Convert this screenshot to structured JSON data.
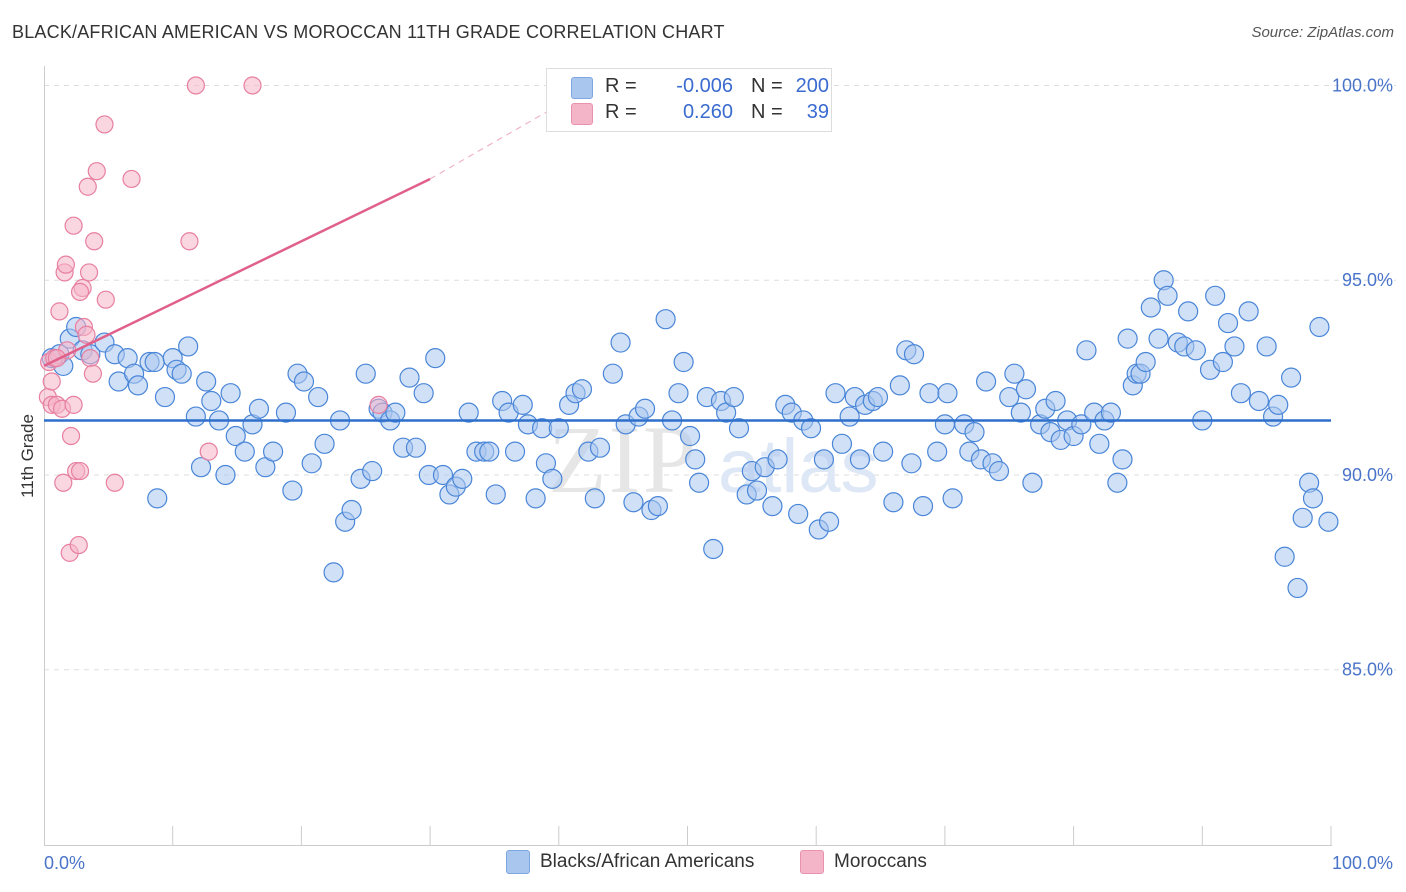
{
  "title": "BLACK/AFRICAN AMERICAN VS MOROCCAN 11TH GRADE CORRELATION CHART",
  "source": "Source: ZipAtlas.com",
  "watermark": "ZIPatlas",
  "legend": {
    "rows": [
      {
        "r_label": "R =",
        "r_value": "-0.006",
        "n_label": "N =",
        "n_value": "200",
        "color": "#a9c6ef"
      },
      {
        "r_label": "R =",
        "r_value": "0.260",
        "n_label": "N =",
        "n_value": "39",
        "color": "#f5b5c8"
      }
    ]
  },
  "bottom_legend": [
    {
      "label": "Blacks/African Americans",
      "color": "#a9c6ef"
    },
    {
      "label": "Moroccans",
      "color": "#f5b5c8"
    }
  ],
  "chart_data": {
    "type": "scatter",
    "title": "BLACK/AFRICAN AMERICAN VS MOROCCAN 11TH GRADE CORRELATION CHART",
    "xlabel": "",
    "ylabel": "11th Grade",
    "xlim": [
      0,
      100
    ],
    "ylim": [
      80.5,
      100.5
    ],
    "x_tick_labels": [
      "0.0%",
      "100.0%"
    ],
    "y_ticks": [
      85,
      90,
      95,
      100
    ],
    "y_tick_labels": [
      "85.0%",
      "90.0%",
      "95.0%",
      "100.0%"
    ],
    "grid": true,
    "series": [
      {
        "name": "Blacks/African Americans",
        "color": "#4a86d8",
        "fill": "#a9c6ef",
        "trend": {
          "x": [
            0,
            100
          ],
          "y": [
            91.4,
            91.4
          ],
          "color": "#2e6fcc"
        },
        "points": [
          [
            0.6,
            93.0
          ],
          [
            1.2,
            93.1
          ],
          [
            1.5,
            92.8
          ],
          [
            2.0,
            93.5
          ],
          [
            2.5,
            93.8
          ],
          [
            3.0,
            93.2
          ],
          [
            3.6,
            93.1
          ],
          [
            4.7,
            93.4
          ],
          [
            5.5,
            93.1
          ],
          [
            5.8,
            92.4
          ],
          [
            6.5,
            93.0
          ],
          [
            7.0,
            92.6
          ],
          [
            7.3,
            92.3
          ],
          [
            8.2,
            92.9
          ],
          [
            8.6,
            92.9
          ],
          [
            8.8,
            89.4
          ],
          [
            9.4,
            92.0
          ],
          [
            10.0,
            93.0
          ],
          [
            10.3,
            92.7
          ],
          [
            10.7,
            92.6
          ],
          [
            11.2,
            93.3
          ],
          [
            11.8,
            91.5
          ],
          [
            12.2,
            90.2
          ],
          [
            12.6,
            92.4
          ],
          [
            13.0,
            91.9
          ],
          [
            13.6,
            91.4
          ],
          [
            14.1,
            90.0
          ],
          [
            14.5,
            92.1
          ],
          [
            14.9,
            91.0
          ],
          [
            15.6,
            90.6
          ],
          [
            16.2,
            91.3
          ],
          [
            16.7,
            91.7
          ],
          [
            17.2,
            90.2
          ],
          [
            17.8,
            90.6
          ],
          [
            18.8,
            91.6
          ],
          [
            19.3,
            89.6
          ],
          [
            19.7,
            92.6
          ],
          [
            20.2,
            92.4
          ],
          [
            20.8,
            90.3
          ],
          [
            21.3,
            92.0
          ],
          [
            21.8,
            90.8
          ],
          [
            22.5,
            87.5
          ],
          [
            23.0,
            91.4
          ],
          [
            23.4,
            88.8
          ],
          [
            23.9,
            89.1
          ],
          [
            24.6,
            89.9
          ],
          [
            25.0,
            92.6
          ],
          [
            25.5,
            90.1
          ],
          [
            26.0,
            91.7
          ],
          [
            26.3,
            91.6
          ],
          [
            26.9,
            91.4
          ],
          [
            27.3,
            91.6
          ],
          [
            27.9,
            90.7
          ],
          [
            28.4,
            92.5
          ],
          [
            28.9,
            90.7
          ],
          [
            29.5,
            92.1
          ],
          [
            29.9,
            90.0
          ],
          [
            30.4,
            93.0
          ],
          [
            31.0,
            90.0
          ],
          [
            31.5,
            89.5
          ],
          [
            32.0,
            89.7
          ],
          [
            32.5,
            89.9
          ],
          [
            33.0,
            91.6
          ],
          [
            33.6,
            90.6
          ],
          [
            34.2,
            90.6
          ],
          [
            34.6,
            90.6
          ],
          [
            35.1,
            89.5
          ],
          [
            35.6,
            91.9
          ],
          [
            36.1,
            91.6
          ],
          [
            36.6,
            90.6
          ],
          [
            37.2,
            91.8
          ],
          [
            37.6,
            91.3
          ],
          [
            38.2,
            89.4
          ],
          [
            38.7,
            91.2
          ],
          [
            39.0,
            90.3
          ],
          [
            39.5,
            89.9
          ],
          [
            40.0,
            91.2
          ],
          [
            40.8,
            91.8
          ],
          [
            41.3,
            92.1
          ],
          [
            41.8,
            92.2
          ],
          [
            42.3,
            90.6
          ],
          [
            42.8,
            89.4
          ],
          [
            43.2,
            90.7
          ],
          [
            44.2,
            92.6
          ],
          [
            44.8,
            93.4
          ],
          [
            45.2,
            91.3
          ],
          [
            45.8,
            89.3
          ],
          [
            46.2,
            91.5
          ],
          [
            46.7,
            91.7
          ],
          [
            47.2,
            89.1
          ],
          [
            47.7,
            89.2
          ],
          [
            48.3,
            94.0
          ],
          [
            48.8,
            91.4
          ],
          [
            49.3,
            92.1
          ],
          [
            49.7,
            92.9
          ],
          [
            50.2,
            91.0
          ],
          [
            50.6,
            90.4
          ],
          [
            50.9,
            89.8
          ],
          [
            51.5,
            92.0
          ],
          [
            52.0,
            88.1
          ],
          [
            52.6,
            91.9
          ],
          [
            53.0,
            91.6
          ],
          [
            53.6,
            92.0
          ],
          [
            54.0,
            91.2
          ],
          [
            54.6,
            89.5
          ],
          [
            55.0,
            90.1
          ],
          [
            55.4,
            89.6
          ],
          [
            56.0,
            90.2
          ],
          [
            56.6,
            89.2
          ],
          [
            57.0,
            90.4
          ],
          [
            57.6,
            91.8
          ],
          [
            58.1,
            91.6
          ],
          [
            58.6,
            89.0
          ],
          [
            59.0,
            91.4
          ],
          [
            59.6,
            91.2
          ],
          [
            60.2,
            88.6
          ],
          [
            60.6,
            90.4
          ],
          [
            61.0,
            88.8
          ],
          [
            61.5,
            92.1
          ],
          [
            62.0,
            90.8
          ],
          [
            62.6,
            91.5
          ],
          [
            63.0,
            92.0
          ],
          [
            63.4,
            90.4
          ],
          [
            63.8,
            91.8
          ],
          [
            64.4,
            91.9
          ],
          [
            64.8,
            92.0
          ],
          [
            65.2,
            90.6
          ],
          [
            66.0,
            89.3
          ],
          [
            66.5,
            92.3
          ],
          [
            67.0,
            93.2
          ],
          [
            67.4,
            90.3
          ],
          [
            67.6,
            93.1
          ],
          [
            68.3,
            89.2
          ],
          [
            68.8,
            92.1
          ],
          [
            69.4,
            90.6
          ],
          [
            70.0,
            91.3
          ],
          [
            70.2,
            92.1
          ],
          [
            70.6,
            89.4
          ],
          [
            71.5,
            91.3
          ],
          [
            71.9,
            90.6
          ],
          [
            72.3,
            91.1
          ],
          [
            72.8,
            90.4
          ],
          [
            73.2,
            92.4
          ],
          [
            73.7,
            90.3
          ],
          [
            74.2,
            90.1
          ],
          [
            75.0,
            92.0
          ],
          [
            75.4,
            92.6
          ],
          [
            75.9,
            91.6
          ],
          [
            76.3,
            92.2
          ],
          [
            76.8,
            89.8
          ],
          [
            77.4,
            91.3
          ],
          [
            77.8,
            91.7
          ],
          [
            78.2,
            91.1
          ],
          [
            78.6,
            91.9
          ],
          [
            79.0,
            90.9
          ],
          [
            79.5,
            91.4
          ],
          [
            80.0,
            91.0
          ],
          [
            80.6,
            91.3
          ],
          [
            81.0,
            93.2
          ],
          [
            81.6,
            91.6
          ],
          [
            82.0,
            90.8
          ],
          [
            82.4,
            91.4
          ],
          [
            82.9,
            91.6
          ],
          [
            83.4,
            89.8
          ],
          [
            83.8,
            90.4
          ],
          [
            84.2,
            93.5
          ],
          [
            84.6,
            92.3
          ],
          [
            84.9,
            92.6
          ],
          [
            85.2,
            92.6
          ],
          [
            85.6,
            92.9
          ],
          [
            86.0,
            94.3
          ],
          [
            86.6,
            93.5
          ],
          [
            87.0,
            95.0
          ],
          [
            87.3,
            94.6
          ],
          [
            88.1,
            93.4
          ],
          [
            88.6,
            93.3
          ],
          [
            88.9,
            94.2
          ],
          [
            89.5,
            93.2
          ],
          [
            90.0,
            91.4
          ],
          [
            90.6,
            92.7
          ],
          [
            91.0,
            94.6
          ],
          [
            91.6,
            92.9
          ],
          [
            92.0,
            93.9
          ],
          [
            92.5,
            93.3
          ],
          [
            93.0,
            92.1
          ],
          [
            93.6,
            94.2
          ],
          [
            94.4,
            91.9
          ],
          [
            95.0,
            93.3
          ],
          [
            95.5,
            91.5
          ],
          [
            95.9,
            91.8
          ],
          [
            96.4,
            87.9
          ],
          [
            96.9,
            92.5
          ],
          [
            97.4,
            87.1
          ],
          [
            97.8,
            88.9
          ],
          [
            98.3,
            89.8
          ],
          [
            98.6,
            89.4
          ],
          [
            99.1,
            93.8
          ],
          [
            99.8,
            88.8
          ]
        ]
      },
      {
        "name": "Moroccans",
        "color": "#e77fa0",
        "fill": "#f5b5c8",
        "trend": {
          "x": [
            0,
            30.0
          ],
          "y": [
            92.8,
            97.6
          ],
          "dashed_x": [
            30.0,
            40.0
          ],
          "dashed_y": [
            97.6,
            99.5
          ],
          "color": "#e0608a"
        },
        "points": [
          [
            0.3,
            92.0
          ],
          [
            0.4,
            92.9
          ],
          [
            0.6,
            92.4
          ],
          [
            0.6,
            91.8
          ],
          [
            0.8,
            93.0
          ],
          [
            1.0,
            91.8
          ],
          [
            1.2,
            94.2
          ],
          [
            1.4,
            91.7
          ],
          [
            1.5,
            89.8
          ],
          [
            1.6,
            95.2
          ],
          [
            1.7,
            95.4
          ],
          [
            1.8,
            93.2
          ],
          [
            2.0,
            88.0
          ],
          [
            2.1,
            91.0
          ],
          [
            2.3,
            96.4
          ],
          [
            2.3,
            91.8
          ],
          [
            2.5,
            90.1
          ],
          [
            2.7,
            88.2
          ],
          [
            2.8,
            90.1
          ],
          [
            3.0,
            94.8
          ],
          [
            3.1,
            93.8
          ],
          [
            3.3,
            93.6
          ],
          [
            3.4,
            97.4
          ],
          [
            3.5,
            95.2
          ],
          [
            3.6,
            93.0
          ],
          [
            3.8,
            92.6
          ],
          [
            3.9,
            96.0
          ],
          [
            4.1,
            97.8
          ],
          [
            4.7,
            99.0
          ],
          [
            4.8,
            94.5
          ],
          [
            5.5,
            89.8
          ],
          [
            6.8,
            97.6
          ],
          [
            11.3,
            96.0
          ],
          [
            11.8,
            100.0
          ],
          [
            12.8,
            90.6
          ],
          [
            16.2,
            100.0
          ],
          [
            26.0,
            91.8
          ],
          [
            1.0,
            93.0
          ],
          [
            2.8,
            94.7
          ]
        ]
      }
    ]
  }
}
